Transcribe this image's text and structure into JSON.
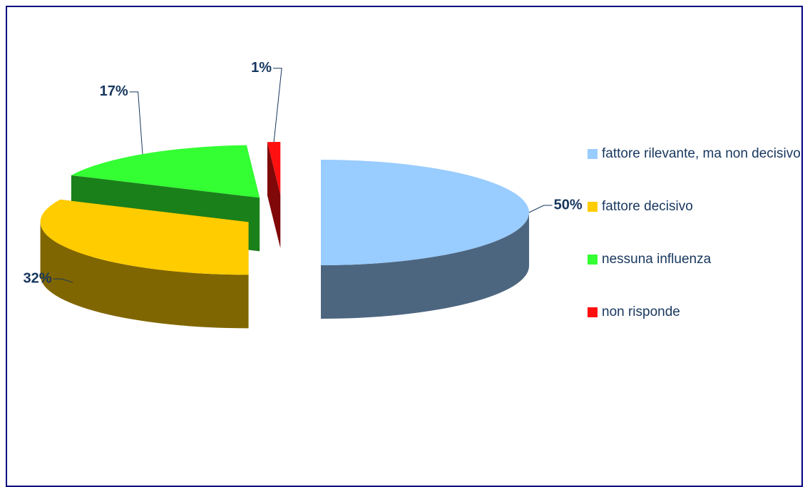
{
  "chart_data": {
    "type": "pie",
    "categories": [
      "fattore rilevante, ma non decisivo",
      "fattore decisivo",
      "nessuna influenza",
      "non risponde"
    ],
    "values": [
      50,
      32,
      17,
      1
    ],
    "value_labels": [
      "50%",
      "32%",
      "17%",
      "1%"
    ],
    "colors": [
      "#99ccff",
      "#ffcc00",
      "#33ff33",
      "#ff1010"
    ],
    "legend": "right"
  }
}
